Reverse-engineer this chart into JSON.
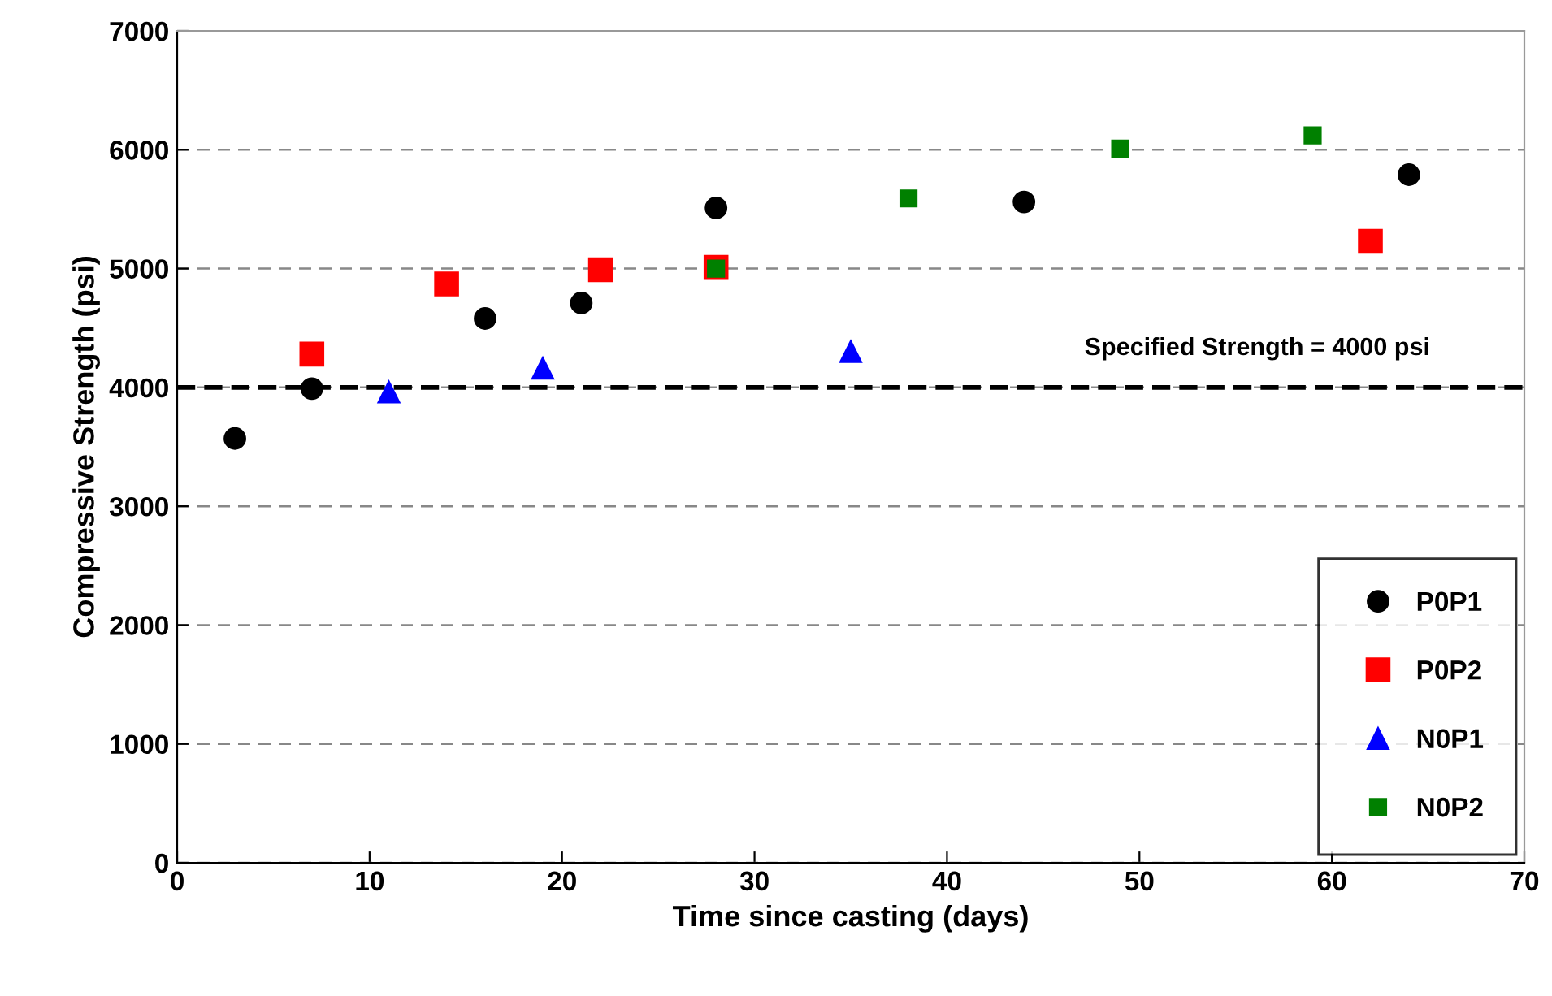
{
  "chart_data": {
    "type": "scatter",
    "xlabel": "Time since casting (days)",
    "ylabel": "Compressive Strength (psi)",
    "xlim": [
      0,
      70
    ],
    "xticks": [
      0,
      10,
      20,
      30,
      40,
      50,
      60,
      70
    ],
    "ylim": [
      0,
      7000
    ],
    "yticks": [
      0,
      1000,
      2000,
      3000,
      4000,
      5000,
      6000,
      7000
    ],
    "grid": "y",
    "legend": "bottom right",
    "ref_lines": [
      {
        "axis": "y",
        "value": 4000,
        "label": "Specified Strength = 4000 psi",
        "color": "#000000",
        "line_style": "dashed"
      }
    ],
    "series": [
      {
        "name": "P0P1",
        "color": "#000000",
        "marker": "circle",
        "x": [
          3,
          7,
          16,
          21,
          28,
          44,
          64
        ],
        "values": [
          3570,
          3990,
          4580,
          4710,
          5510,
          5560,
          5790
        ]
      },
      {
        "name": "P0P2",
        "color": "#ff0000",
        "marker": "square",
        "x": [
          7,
          14,
          22,
          28,
          62
        ],
        "values": [
          4280,
          4870,
          4990,
          5010,
          5230
        ]
      },
      {
        "name": "N0P1",
        "color": "#0000ff",
        "marker": "triangle",
        "x": [
          11,
          19,
          35
        ],
        "values": [
          3960,
          4160,
          4300
        ]
      },
      {
        "name": "N0P2",
        "color": "#008000",
        "marker": "square",
        "x": [
          28,
          38,
          49,
          59
        ],
        "values": [
          5000,
          5590,
          6010,
          6120
        ]
      }
    ]
  }
}
